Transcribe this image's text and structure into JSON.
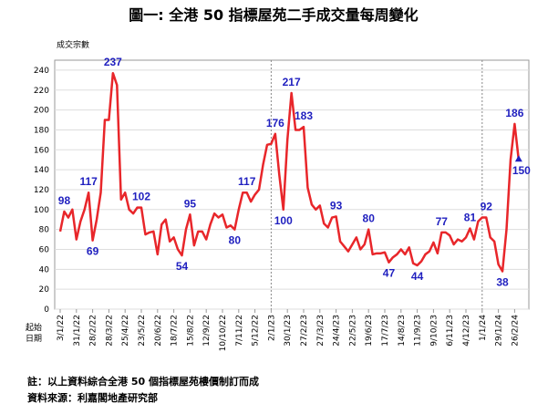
{
  "chart_data": {
    "type": "line",
    "title": "圖一: 全港 50 指標屋苑二手成交量每周變化",
    "y_label": "成交宗數",
    "x_label": "起始日期",
    "notes": [
      "註：以上資料綜合全港 50 個指標屋苑樓價制訂而成",
      "資料來源：利嘉閣地產研究部"
    ],
    "categories": [
      "3/1/22",
      null,
      null,
      null,
      "31/1/22",
      null,
      null,
      null,
      "28/2/22",
      null,
      null,
      null,
      "28/3/22",
      null,
      null,
      null,
      "25/4/22",
      null,
      null,
      null,
      "23/5/22",
      null,
      null,
      null,
      "20/6/22",
      null,
      null,
      null,
      "18/7/22",
      null,
      null,
      null,
      "15/8/22",
      null,
      null,
      null,
      "12/9/22",
      null,
      null,
      null,
      "10/10/22",
      null,
      null,
      null,
      "7/11/22",
      null,
      null,
      null,
      "5/12/22",
      null,
      null,
      null,
      "2/1/23",
      null,
      null,
      null,
      "30/1/23",
      null,
      null,
      null,
      "27/2/23",
      null,
      null,
      null,
      "27/3/23",
      null,
      null,
      null,
      "24/4/23",
      null,
      null,
      null,
      "22/5/23",
      null,
      null,
      null,
      "19/6/23",
      null,
      null,
      null,
      "17/7/23",
      null,
      null,
      null,
      "14/8/23",
      null,
      null,
      null,
      "11/9/23",
      null,
      null,
      null,
      "9/10/23",
      null,
      null,
      null,
      "6/11/23",
      null,
      null,
      null,
      "4/12/23",
      null,
      null,
      null,
      "1/1/24",
      null,
      null,
      null,
      "29/1/24",
      null,
      null,
      null,
      "26/2/24",
      null
    ],
    "series": [
      {
        "name": "成交宗數",
        "color": "#e8262a",
        "label_color": "#1f1fbf",
        "values": [
          78,
          98,
          92,
          100,
          70,
          88,
          100,
          117,
          69,
          90,
          117,
          190,
          190,
          237,
          225,
          110,
          117,
          100,
          96,
          102,
          102,
          75,
          77,
          78,
          55,
          85,
          90,
          68,
          72,
          60,
          54,
          80,
          95,
          64,
          78,
          78,
          70,
          85,
          96,
          92,
          95,
          82,
          84,
          80,
          100,
          117,
          117,
          108,
          115,
          120,
          145,
          165,
          166,
          176,
          135,
          100,
          170,
          217,
          180,
          180,
          183,
          122,
          105,
          100,
          104,
          86,
          82,
          92,
          93,
          68,
          63,
          58,
          65,
          72,
          60,
          65,
          80,
          55,
          56,
          56,
          57,
          47,
          52,
          55,
          60,
          55,
          62,
          46,
          44,
          48,
          55,
          58,
          67,
          56,
          77,
          77,
          74,
          65,
          70,
          68,
          72,
          81,
          70,
          88,
          92,
          92,
          72,
          68,
          45,
          38,
          80,
          150,
          186,
          150
        ],
        "value_labels": [
          null,
          "98",
          null,
          null,
          null,
          null,
          null,
          "117",
          "69",
          null,
          null,
          null,
          null,
          "237",
          null,
          null,
          null,
          null,
          null,
          null,
          "102",
          null,
          null,
          null,
          null,
          null,
          null,
          null,
          null,
          null,
          "54",
          null,
          "95",
          null,
          null,
          null,
          null,
          null,
          null,
          null,
          null,
          null,
          null,
          "80",
          null,
          null,
          "117",
          null,
          null,
          null,
          null,
          null,
          null,
          "176",
          null,
          "100",
          null,
          "217",
          null,
          null,
          "183",
          null,
          null,
          null,
          null,
          null,
          null,
          null,
          "93",
          null,
          null,
          null,
          null,
          null,
          null,
          null,
          "80",
          null,
          null,
          null,
          null,
          "47",
          null,
          null,
          null,
          null,
          null,
          null,
          "44",
          null,
          null,
          null,
          null,
          null,
          "77",
          null,
          null,
          null,
          null,
          null,
          null,
          "81",
          null,
          null,
          null,
          "92",
          null,
          null,
          null,
          "38",
          null,
          null,
          "186",
          "150"
        ]
      }
    ],
    "ylim": [
      0,
      250
    ],
    "yticks": [
      0,
      20,
      40,
      60,
      80,
      100,
      120,
      140,
      160,
      180,
      200,
      220,
      240
    ],
    "grid": true
  }
}
